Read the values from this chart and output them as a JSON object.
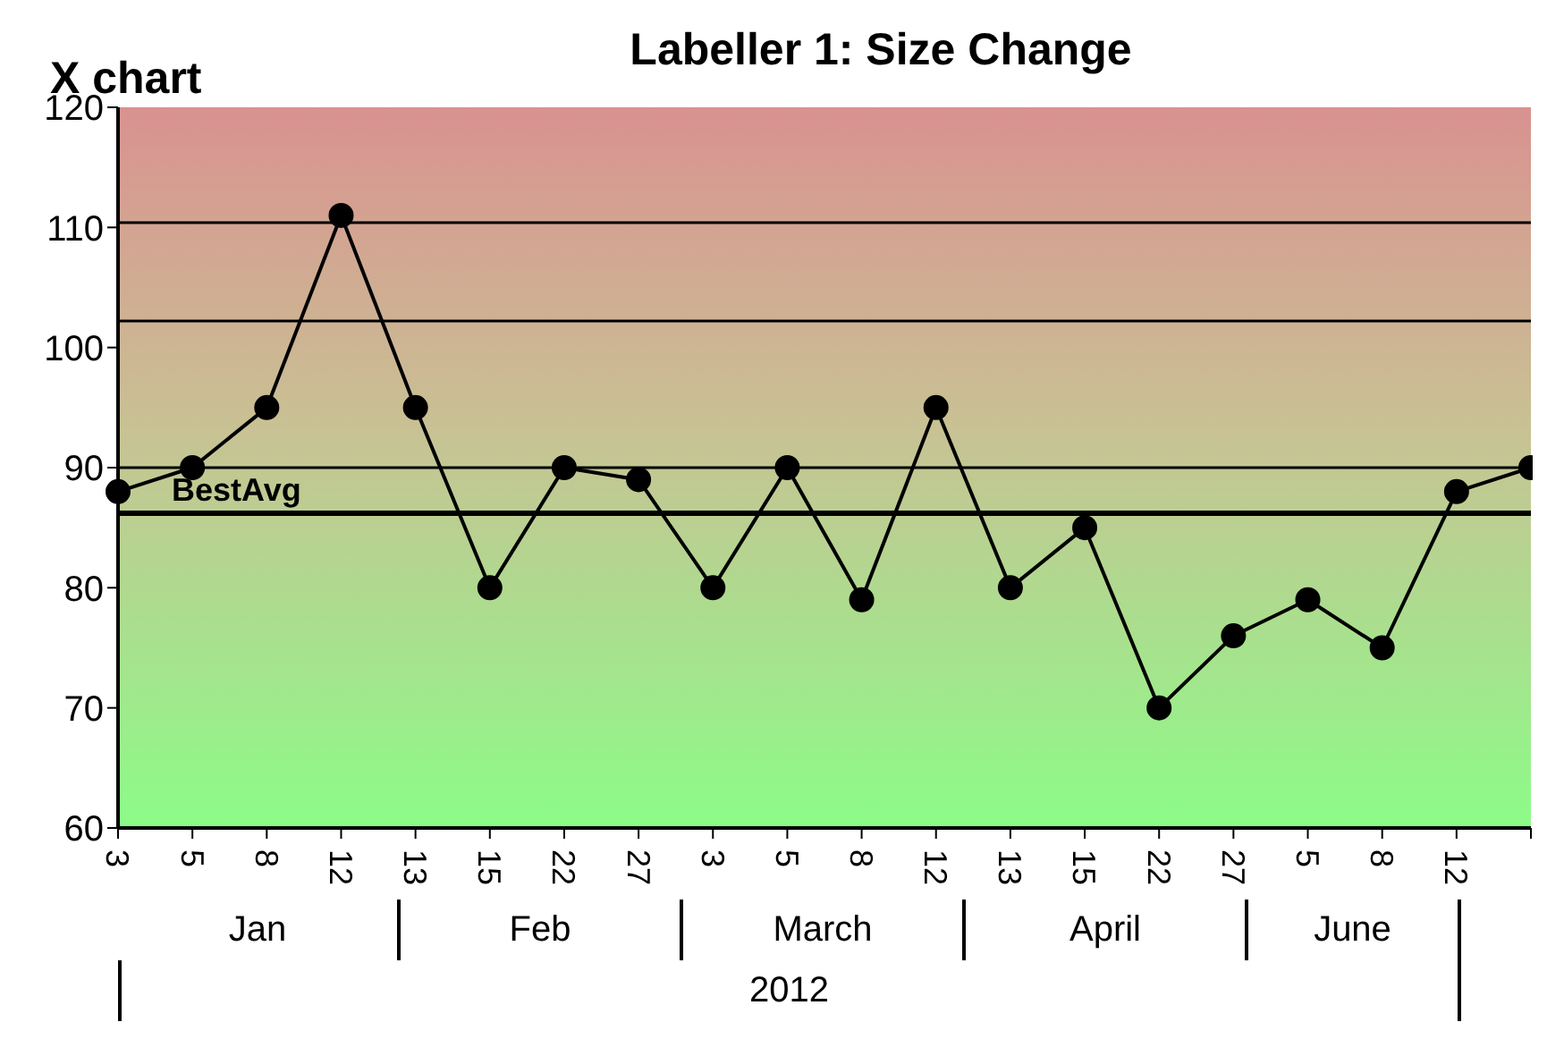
{
  "chart_data": {
    "type": "line",
    "title": "Labeller 1: Size Change",
    "ylabel": "X chart",
    "categories": [
      "3",
      "5",
      "8",
      "12",
      "13",
      "15",
      "22",
      "27",
      "3",
      "5",
      "8",
      "12",
      "13",
      "15",
      "22",
      "27",
      "5",
      "8",
      "12",
      null
    ],
    "series": [
      {
        "color": "#000000",
        "values": [
          88,
          90,
          95,
          111,
          95,
          80,
          90,
          89,
          80,
          90,
          79,
          95,
          80,
          85,
          70,
          76,
          79,
          75,
          88,
          90
        ]
      }
    ],
    "ylim": [
      60,
      120
    ],
    "yticks": [
      60,
      70,
      80,
      90,
      100,
      110,
      120
    ],
    "grid": false,
    "legend": false,
    "marker": "circle",
    "line_style": "solid",
    "ref_lines": [
      {
        "axis": "y",
        "value": 110.4,
        "color": "#000000"
      },
      {
        "axis": "y",
        "value": 102.2,
        "color": "#000000"
      },
      {
        "axis": "y",
        "value": 90,
        "color": "#000000"
      },
      {
        "axis": "y",
        "value": 86.2,
        "label": "BestAvg",
        "color": "#000000"
      }
    ],
    "annotations": [
      "Jan",
      "Feb",
      "March",
      "April",
      "June",
      "2012"
    ]
  }
}
